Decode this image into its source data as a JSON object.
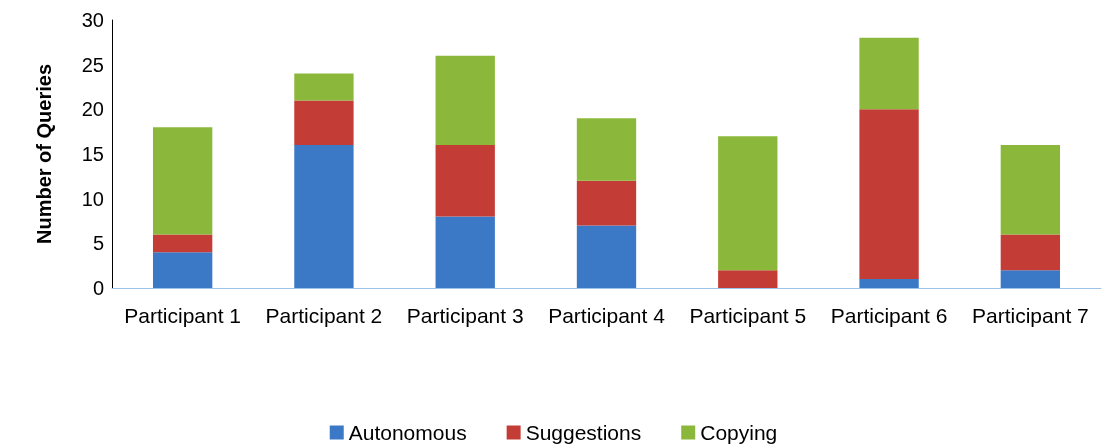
{
  "chart_data": {
    "type": "bar",
    "stacked": true,
    "ylabel": "Number of Queries",
    "categories": [
      "Participant 1",
      "Participant 2",
      "Participant 3",
      "Participant 4",
      "Participant 5",
      "Participant 6",
      "Participant 7"
    ],
    "series": [
      {
        "name": "Autonomous",
        "color": "#3b78c6",
        "values": [
          4,
          16,
          8,
          7,
          0,
          1,
          2
        ]
      },
      {
        "name": "Suggestions",
        "color": "#c43c36",
        "values": [
          2,
          5,
          8,
          5,
          2,
          19,
          4
        ]
      },
      {
        "name": "Copying",
        "color": "#8bb83a",
        "values": [
          12,
          3,
          10,
          7,
          15,
          8,
          10
        ]
      }
    ],
    "ylim": [
      0,
      30
    ],
    "yticks": [
      0,
      5,
      10,
      15,
      20,
      25,
      30
    ],
    "grid": false,
    "legend": "bottom"
  }
}
